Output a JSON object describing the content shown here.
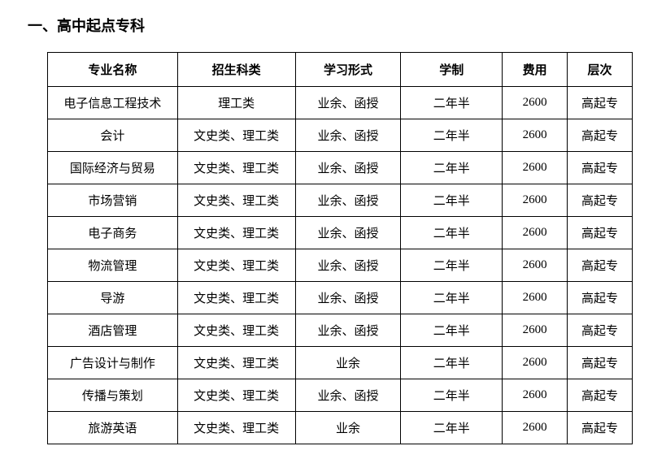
{
  "title": "一、高中起点专科",
  "table": {
    "columns": [
      "专业名称",
      "招生科类",
      "学习形式",
      "学制",
      "费用",
      "层次"
    ],
    "rows": [
      [
        "电子信息工程技术",
        "理工类",
        "业余、函授",
        "二年半",
        "2600",
        "高起专"
      ],
      [
        "会计",
        "文史类、理工类",
        "业余、函授",
        "二年半",
        "2600",
        "高起专"
      ],
      [
        "国际经济与贸易",
        "文史类、理工类",
        "业余、函授",
        "二年半",
        "2600",
        "高起专"
      ],
      [
        "市场营销",
        "文史类、理工类",
        "业余、函授",
        "二年半",
        "2600",
        "高起专"
      ],
      [
        "电子商务",
        "文史类、理工类",
        "业余、函授",
        "二年半",
        "2600",
        "高起专"
      ],
      [
        "物流管理",
        "文史类、理工类",
        "业余、函授",
        "二年半",
        "2600",
        "高起专"
      ],
      [
        "导游",
        "文史类、理工类",
        "业余、函授",
        "二年半",
        "2600",
        "高起专"
      ],
      [
        "酒店管理",
        "文史类、理工类",
        "业余、函授",
        "二年半",
        "2600",
        "高起专"
      ],
      [
        "广告设计与制作",
        "文史类、理工类",
        "业余",
        "二年半",
        "2600",
        "高起专"
      ],
      [
        "传播与策划",
        "文史类、理工类",
        "业余、函授",
        "二年半",
        "2600",
        "高起专"
      ],
      [
        "旅游英语",
        "文史类、理工类",
        "业余",
        "二年半",
        "2600",
        "高起专"
      ]
    ]
  }
}
